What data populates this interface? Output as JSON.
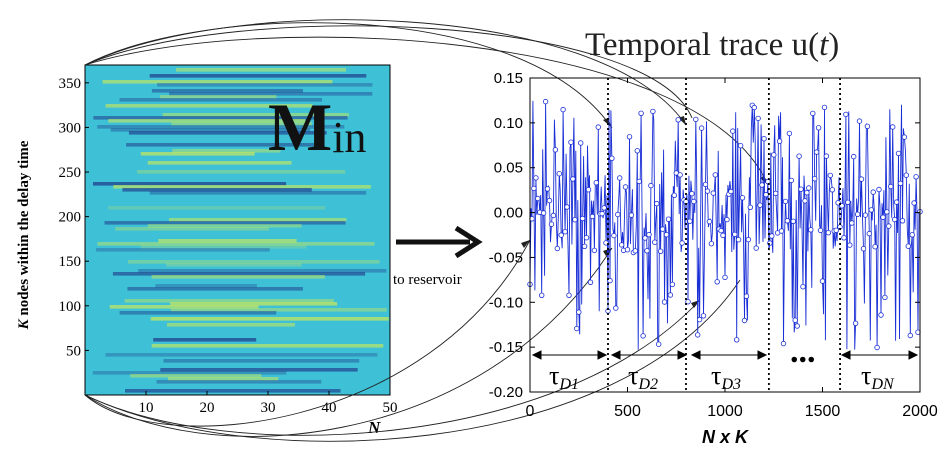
{
  "heatmap": {
    "title_main": "M",
    "title_sub": "in",
    "ylabel_italic": "K",
    "ylabel_rest": " nodes within the delay time",
    "xlabel": "N",
    "xticks": [
      "10",
      "20",
      "30",
      "40",
      "50"
    ],
    "yticks": [
      "50",
      "100",
      "150",
      "200",
      "250",
      "300",
      "350"
    ]
  },
  "arrow_label": "to reservoir",
  "trace": {
    "title_prefix": "Temporal trace  u(",
    "title_var": "t",
    "title_suffix": ")",
    "xlabel": "N x K",
    "xticks": [
      "0",
      "500",
      "1000",
      "1500",
      "2000"
    ],
    "yticks": [
      "0.15",
      "0.10",
      "0.05",
      "0.00",
      "-0.05",
      "-0.10",
      "-0.15",
      "-0.20"
    ],
    "segments": [
      {
        "tau": "τ",
        "sub": "D1"
      },
      {
        "tau": "τ",
        "sub": "D2"
      },
      {
        "tau": "τ",
        "sub": "D3"
      },
      {
        "tau": "τ",
        "sub": "DN"
      }
    ],
    "ellipsis": "..."
  },
  "chart_data": [
    {
      "type": "heatmap",
      "title": "M_in",
      "xlabel": "N",
      "ylabel": "K nodes within the delay time",
      "xlim": [
        0,
        50
      ],
      "ylim": [
        0,
        370
      ],
      "colors": {
        "base": "#3ec0d6",
        "dark": "#1f3a8a",
        "light": "#c8e85a"
      }
    },
    {
      "type": "line",
      "title": "Temporal trace  u(t)",
      "xlabel": "N x K",
      "xlim": [
        0,
        2000
      ],
      "ylim": [
        -0.2,
        0.15
      ],
      "separators_x": [
        400,
        800,
        1225,
        1590
      ],
      "series_color": "#1a2fd6"
    }
  ]
}
